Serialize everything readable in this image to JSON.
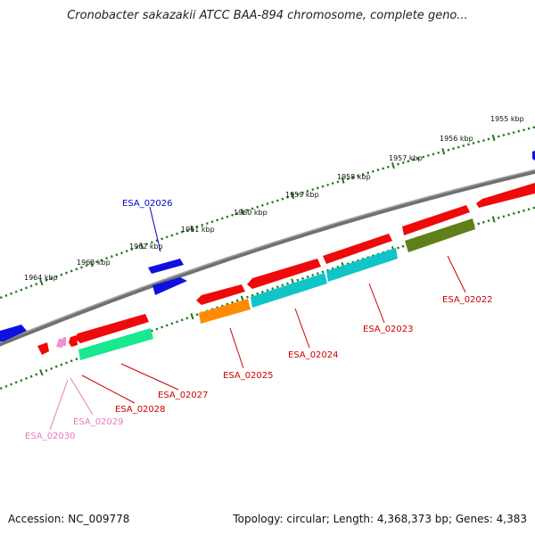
{
  "title": "Cronobacter sakazakii ATCC BAA-894 chromosome, complete geno...",
  "footer": {
    "accession": "Accession: NC_009778",
    "summary": "Topology: circular; Length: 4,368,373 bp; Genes: 4,383"
  },
  "colors": {
    "backbone": "#808080",
    "tick": "#1a7a1a",
    "blue": "#1010e0",
    "red": "#ee0a0a",
    "cyan": "#10c4c8",
    "orange": "#ff8c00",
    "olive": "#5f8018",
    "spring": "#18e890",
    "pink": "#f090d0",
    "label_red": "#cc0000",
    "label_blue": "#0000cc",
    "label_pink": "#e879c0"
  },
  "kbp_labels": [
    "1955 kbp",
    "1956 kbp",
    "1957 kbp",
    "1958 kbp",
    "1959 kbp",
    "1960 kbp",
    "1961 kbp",
    "1962 kbp",
    "1963 kbp",
    "1964 kbp"
  ],
  "genes": [
    {
      "name": "ESA_02026",
      "color": "blue",
      "label_color": "label_blue"
    },
    {
      "name": "ESA_02022",
      "color": "olive",
      "label_color": "label_red"
    },
    {
      "name": "ESA_02023",
      "color": "cyan",
      "label_color": "label_red"
    },
    {
      "name": "ESA_02024",
      "color": "cyan",
      "label_color": "label_red"
    },
    {
      "name": "ESA_02025",
      "color": "orange",
      "label_color": "label_red"
    },
    {
      "name": "ESA_02027",
      "color": "spring",
      "label_color": "label_red"
    },
    {
      "name": "ESA_02028",
      "color": "red",
      "label_color": "label_red"
    },
    {
      "name": "ESA_02029",
      "color": "pink",
      "label_color": "label_pink"
    },
    {
      "name": "ESA_02030",
      "color": "pink",
      "label_color": "label_pink"
    }
  ]
}
